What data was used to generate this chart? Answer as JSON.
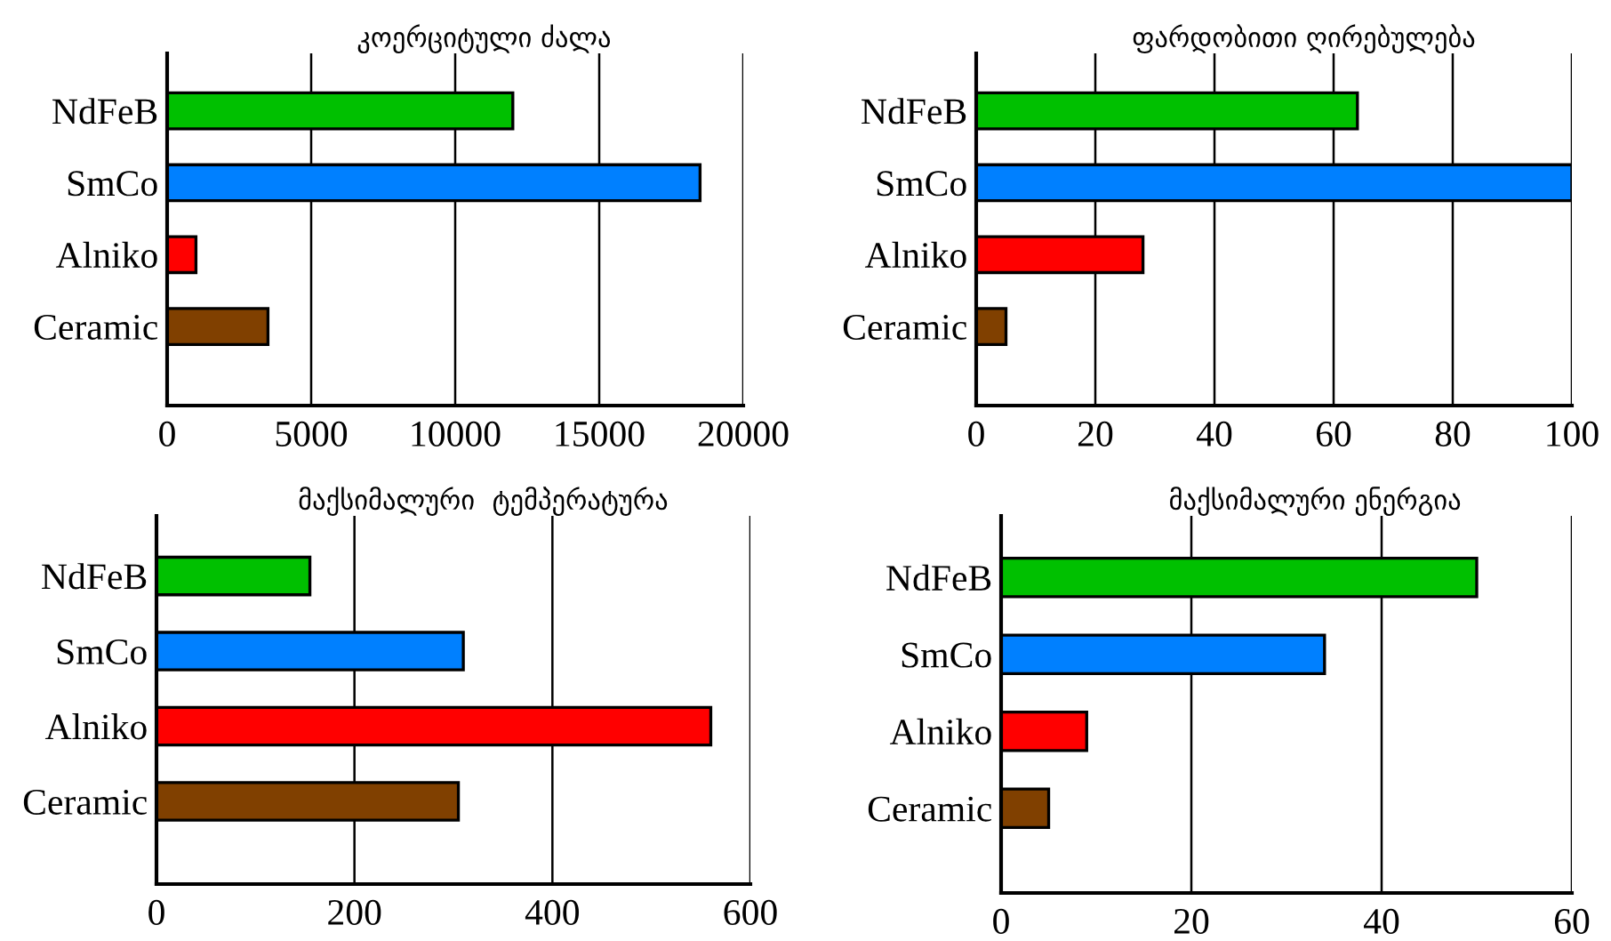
{
  "chart_data": [
    {
      "type": "bar",
      "orientation": "horizontal",
      "title": "კოერციტული ძალა",
      "categories": [
        "NdFeB",
        "SmCo",
        "Alniko",
        "Ceramic"
      ],
      "values": [
        12000,
        18500,
        1000,
        3500
      ],
      "colors": [
        "#00c000",
        "#0080ff",
        "#ff0000",
        "#804000"
      ],
      "xlim": [
        0,
        20000
      ],
      "xticks": [
        0,
        5000,
        10000,
        15000,
        20000
      ],
      "grid": "x"
    },
    {
      "type": "bar",
      "orientation": "horizontal",
      "title": "ფარდობითი ღირებულება",
      "categories": [
        "NdFeB",
        "SmCo",
        "Alniko",
        "Ceramic"
      ],
      "values": [
        64,
        100,
        28,
        5
      ],
      "colors": [
        "#00c000",
        "#0080ff",
        "#ff0000",
        "#804000"
      ],
      "xlim": [
        0,
        100
      ],
      "xticks": [
        0,
        20,
        40,
        60,
        80,
        100
      ],
      "grid": "x"
    },
    {
      "type": "bar",
      "orientation": "horizontal",
      "title": "მაქსიმალური  ტემპერატურა",
      "categories": [
        "NdFeB",
        "SmCo",
        "Alniko",
        "Ceramic"
      ],
      "values": [
        155,
        310,
        560,
        305
      ],
      "colors": [
        "#00c000",
        "#0080ff",
        "#ff0000",
        "#804000"
      ],
      "xlim": [
        0,
        600
      ],
      "xticks": [
        0,
        200,
        400,
        600
      ],
      "grid": "x"
    },
    {
      "type": "bar",
      "orientation": "horizontal",
      "title": "მაქსიმალური ენერგია",
      "categories": [
        "NdFeB",
        "SmCo",
        "Alniko",
        "Ceramic"
      ],
      "values": [
        50,
        34,
        9,
        5
      ],
      "colors": [
        "#00c000",
        "#0080ff",
        "#ff0000",
        "#804000"
      ],
      "xlim": [
        0,
        60
      ],
      "xticks": [
        0,
        20,
        40,
        60
      ],
      "grid": "x"
    }
  ]
}
